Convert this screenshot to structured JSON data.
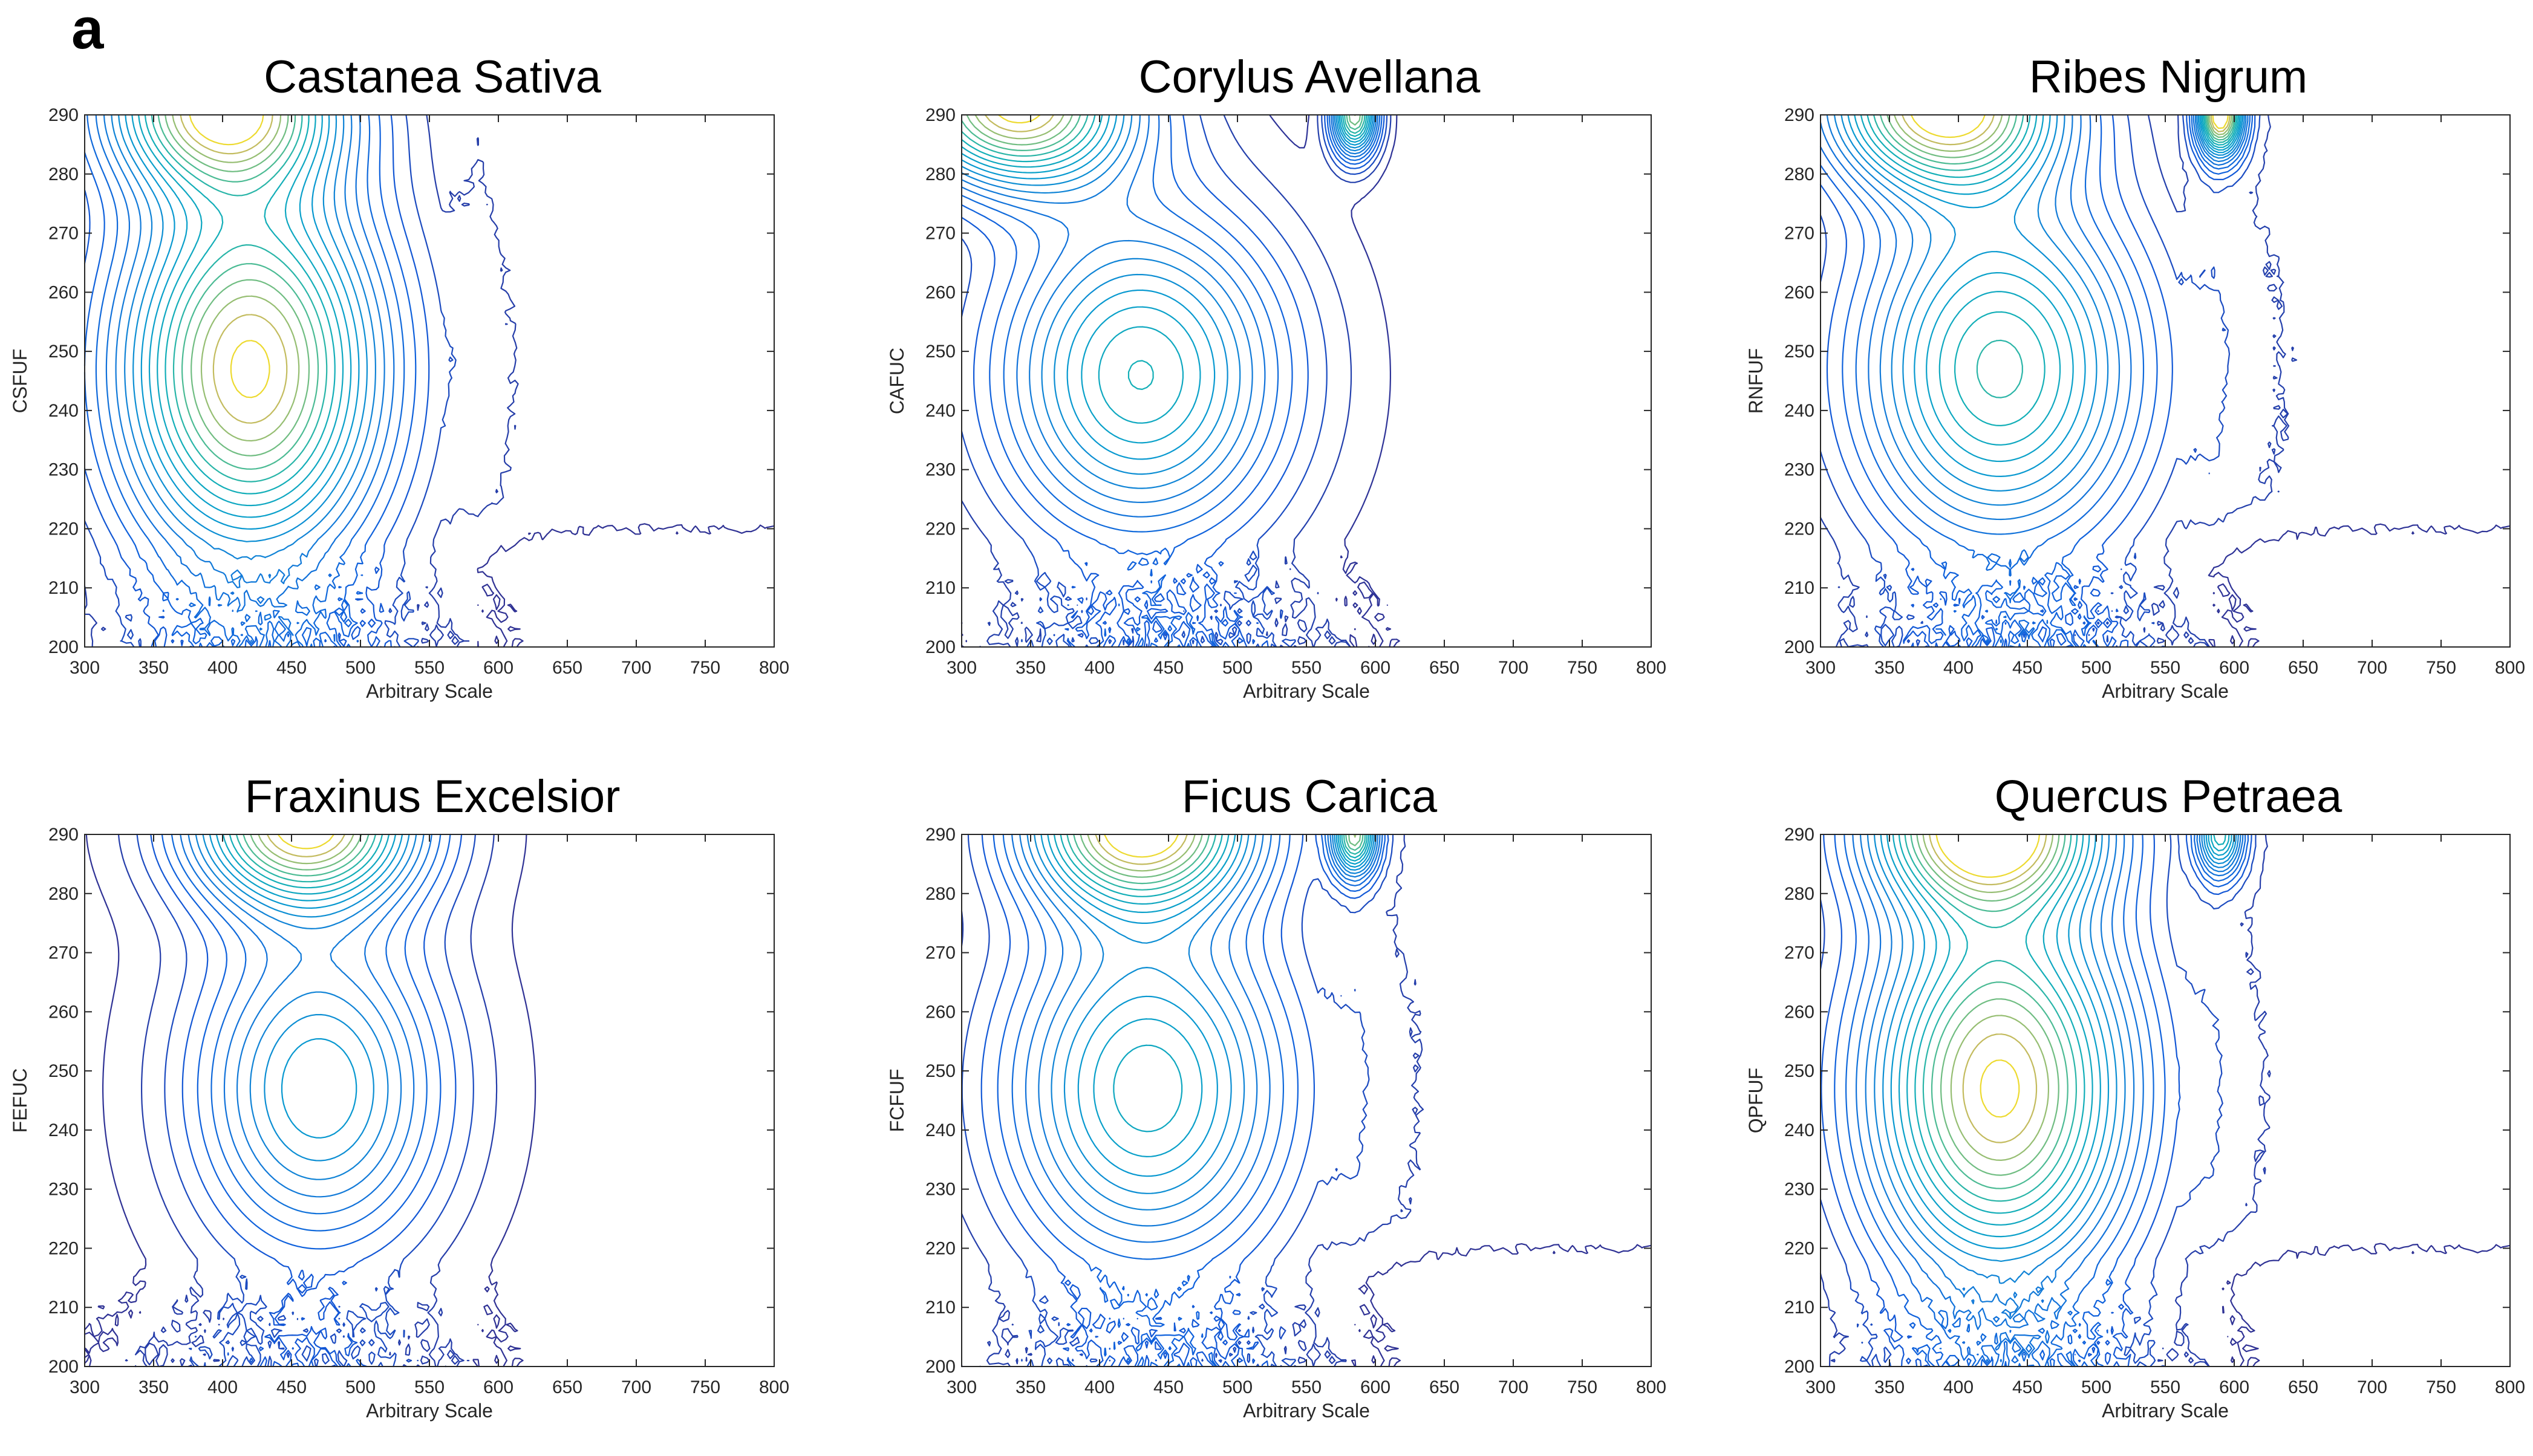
{
  "figure": {
    "panel_label": "a"
  },
  "chart_data": [
    {
      "type": "contour",
      "title": "Castanea Sativa",
      "xlabel": "Arbitrary Scale",
      "ylabel": "CSFUF",
      "xlim": [
        300,
        800
      ],
      "ylim": [
        200,
        290
      ],
      "xticks": [
        300,
        350,
        400,
        450,
        500,
        550,
        600,
        650,
        700,
        750,
        800
      ],
      "yticks": [
        200,
        210,
        220,
        230,
        240,
        250,
        260,
        270,
        280,
        290
      ],
      "peaks": [
        {
          "x": 420,
          "y": 247,
          "sx": 70,
          "sy": 24,
          "h": 1.0
        },
        {
          "x": 400,
          "y": 292,
          "sx": 60,
          "sy": 10,
          "h": 0.9
        }
      ],
      "right_region": true,
      "levels": 20,
      "max_color": "#f9e43a"
    },
    {
      "type": "contour",
      "title": "Corylus Avellana",
      "xlabel": "Arbitrary Scale",
      "ylabel": "CAFUC",
      "xlim": [
        300,
        800
      ],
      "ylim": [
        200,
        290
      ],
      "xticks": [
        300,
        350,
        400,
        450,
        500,
        550,
        600,
        650,
        700,
        750,
        800
      ],
      "yticks": [
        200,
        210,
        220,
        230,
        240,
        250,
        260,
        270,
        280,
        290
      ],
      "peaks": [
        {
          "x": 430,
          "y": 246,
          "sx": 75,
          "sy": 20,
          "h": 0.55
        },
        {
          "x": 340,
          "y": 292,
          "sx": 60,
          "sy": 10,
          "h": 0.8
        },
        {
          "x": 585,
          "y": 290,
          "sx": 12,
          "sy": 5,
          "h": 0.7
        }
      ],
      "right_region": false,
      "levels": 20,
      "max_color": "#f9e43a"
    },
    {
      "type": "contour",
      "title": "Ribes Nigrum",
      "xlabel": "Arbitrary Scale",
      "ylabel": "RNFUF",
      "xlim": [
        300,
        800
      ],
      "ylim": [
        200,
        290
      ],
      "xticks": [
        300,
        350,
        400,
        450,
        500,
        550,
        600,
        650,
        700,
        750,
        800
      ],
      "yticks": [
        200,
        210,
        220,
        230,
        240,
        250,
        260,
        270,
        280,
        290
      ],
      "peaks": [
        {
          "x": 430,
          "y": 247,
          "sx": 75,
          "sy": 22,
          "h": 0.6
        },
        {
          "x": 390,
          "y": 292,
          "sx": 60,
          "sy": 10,
          "h": 0.8
        },
        {
          "x": 590,
          "y": 290,
          "sx": 12,
          "sy": 5,
          "h": 0.8
        }
      ],
      "right_region": true,
      "levels": 20,
      "max_color": "#f9e43a"
    },
    {
      "type": "contour",
      "title": "Fraxinus Excelsior",
      "xlabel": "Arbitrary Scale",
      "ylabel": "FEFUC",
      "xlim": [
        300,
        800
      ],
      "ylim": [
        200,
        290
      ],
      "xticks": [
        300,
        350,
        400,
        450,
        500,
        550,
        600,
        650,
        700,
        750,
        800
      ],
      "yticks": [
        200,
        210,
        220,
        230,
        240,
        250,
        260,
        270,
        280,
        290
      ],
      "peaks": [
        {
          "x": 470,
          "y": 247,
          "sx": 65,
          "sy": 20,
          "h": 0.55
        },
        {
          "x": 460,
          "y": 292,
          "sx": 60,
          "sy": 10,
          "h": 0.95
        }
      ],
      "right_region": false,
      "levels": 20,
      "max_color": "#f9e43a"
    },
    {
      "type": "contour",
      "title": "Ficus Carica",
      "xlabel": "Arbitrary Scale",
      "ylabel": "FCFUF",
      "xlim": [
        300,
        800
      ],
      "ylim": [
        200,
        290
      ],
      "xticks": [
        300,
        350,
        400,
        450,
        500,
        550,
        600,
        650,
        700,
        750,
        800
      ],
      "yticks": [
        200,
        210,
        220,
        230,
        240,
        250,
        260,
        270,
        280,
        290
      ],
      "peaks": [
        {
          "x": 435,
          "y": 247,
          "sx": 75,
          "sy": 22,
          "h": 0.6
        },
        {
          "x": 430,
          "y": 292,
          "sx": 60,
          "sy": 10,
          "h": 0.9
        },
        {
          "x": 585,
          "y": 290,
          "sx": 12,
          "sy": 5,
          "h": 0.7
        }
      ],
      "right_region": true,
      "levels": 20,
      "max_color": "#f9e43a"
    },
    {
      "type": "contour",
      "title": "Quercus Petraea",
      "xlabel": "Arbitrary Scale",
      "ylabel": "QPFUF",
      "xlim": [
        300,
        800
      ],
      "ylim": [
        200,
        290
      ],
      "xticks": [
        300,
        350,
        400,
        450,
        500,
        550,
        600,
        650,
        700,
        750,
        800
      ],
      "yticks": [
        200,
        210,
        220,
        230,
        240,
        250,
        260,
        270,
        280,
        290
      ],
      "peaks": [
        {
          "x": 430,
          "y": 247,
          "sx": 70,
          "sy": 24,
          "h": 0.95
        },
        {
          "x": 420,
          "y": 292,
          "sx": 60,
          "sy": 10,
          "h": 0.95
        },
        {
          "x": 590,
          "y": 290,
          "sx": 12,
          "sy": 5,
          "h": 0.6
        }
      ],
      "right_region": true,
      "levels": 20,
      "max_color": "#f9e43a"
    }
  ]
}
